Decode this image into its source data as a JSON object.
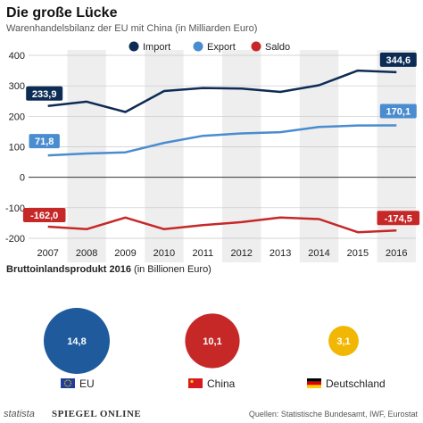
{
  "header": {
    "title": "Die große Lücke",
    "subtitle": "Warenhandelsbilanz der EU mit China (in Milliarden Euro)"
  },
  "chart_data": [
    {
      "type": "line",
      "title": "Die große Lücke",
      "subtitle": "Warenhandelsbilanz der EU mit China (in Milliarden Euro)",
      "x": [
        "2007",
        "2008",
        "2009",
        "2010",
        "2011",
        "2012",
        "2013",
        "2014",
        "2015",
        "2016"
      ],
      "ylim": [
        -200,
        400
      ],
      "yticks": [
        "400",
        "300",
        "200",
        "100",
        "0",
        "-100",
        "-200"
      ],
      "ytick_values": [
        400,
        300,
        200,
        100,
        0,
        -100,
        -200
      ],
      "legend_position": "top",
      "grid": true,
      "series": [
        {
          "name": "Import",
          "color": "#0d2c54",
          "values": [
            233.9,
            248,
            214,
            283,
            293,
            291,
            280,
            302,
            350,
            344.6
          ],
          "labels": {
            "first": "233,9",
            "last": "344,6"
          }
        },
        {
          "name": "Export",
          "color": "#4a8cd0",
          "values": [
            71.8,
            78,
            82,
            113,
            136,
            144,
            148,
            165,
            170,
            170.1
          ],
          "labels": {
            "first": "71,8",
            "last": "170,1"
          }
        },
        {
          "name": "Saldo",
          "color": "#c62828",
          "values": [
            -162.0,
            -170,
            -132,
            -170,
            -157,
            -147,
            -132,
            -137,
            -180,
            -174.5
          ],
          "labels": {
            "first": "-162,0",
            "last": "-174,5"
          }
        }
      ]
    },
    {
      "type": "bubble",
      "title": "Bruttoinlandsprodukt 2016",
      "unit": "(in Billionen Euro)",
      "items": [
        {
          "label": "EU",
          "value": 14.8,
          "value_text": "14,8",
          "color": "#1f5b9c",
          "flag": "eu"
        },
        {
          "label": "China",
          "value": 10.1,
          "value_text": "10,1",
          "color": "#c62828",
          "flag": "china"
        },
        {
          "label": "Deutschland",
          "value": 3.1,
          "value_text": "3,1",
          "color": "#f2b705",
          "flag": "germany"
        }
      ]
    }
  ],
  "footer": {
    "brand_statista": "statista",
    "brand_spiegel": "SPIEGEL ONLINE",
    "source": "Quellen: Statistische Bundesamt, IWF, Eurostat"
  }
}
